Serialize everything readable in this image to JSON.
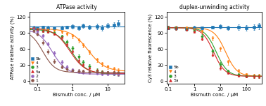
{
  "chart_data": [
    {
      "type": "scatter",
      "title": "ATPase activity",
      "xlabel": "Bismuth conc. / μM",
      "ylabel": "ATPase relative activity (%)",
      "log": "x",
      "xlim": [
        0.06,
        30
      ],
      "xticks": [
        0.1,
        1,
        10
      ],
      "ylim": [
        -5,
        130
      ],
      "yticks": [
        0,
        30,
        60,
        90,
        120
      ],
      "legend": "lower left",
      "series": [
        {
          "name": "5b",
          "marker": "square",
          "x": [
            0.08,
            0.1,
            0.15,
            0.2,
            0.3,
            0.5,
            0.7,
            1.0,
            1.5,
            2.0,
            3.0,
            5.0,
            7.0,
            10.0,
            15.0,
            20.0
          ],
          "values": [
            100,
            99,
            101,
            100,
            99,
            100,
            101,
            102,
            100,
            103,
            101,
            102,
            100,
            104,
            105,
            108
          ],
          "errors": [
            3,
            3,
            3,
            3,
            3,
            3,
            3,
            4,
            4,
            4,
            4,
            5,
            5,
            5,
            5,
            6
          ],
          "fit": {
            "level": 101.5625
          }
        },
        {
          "name": "4",
          "marker": "triangle_down",
          "x": [
            0.08,
            0.1,
            0.15,
            0.2,
            0.3,
            0.5,
            0.7,
            1.0,
            1.5,
            2.0,
            3.0,
            5.0,
            7.0,
            10.0,
            15.0,
            20.0
          ],
          "values": [
            98,
            97,
            96,
            96,
            94,
            92,
            88,
            84,
            76,
            67,
            54,
            40,
            32,
            26,
            22,
            20
          ],
          "errors": [
            3,
            3,
            3,
            3,
            3,
            3,
            3,
            4,
            4,
            4,
            4,
            4,
            4,
            4,
            4,
            4
          ],
          "fit": {
            "ic50": 2.8,
            "hill": 1.8,
            "top": 98,
            "bottom": 18
          }
        },
        {
          "name": "3",
          "marker": "circle",
          "x": [
            0.08,
            0.1,
            0.15,
            0.2,
            0.3,
            0.5,
            0.7,
            1.0,
            1.5,
            2.0,
            3.0,
            5.0,
            7.0,
            10.0,
            15.0,
            20.0
          ],
          "values": [
            97,
            96,
            95,
            93,
            90,
            84,
            74,
            62,
            46,
            36,
            28,
            20,
            17,
            15,
            14,
            13
          ],
          "errors": [
            3,
            3,
            3,
            3,
            3,
            3,
            3,
            4,
            4,
            4,
            4,
            4,
            3,
            3,
            3,
            3
          ],
          "fit": {
            "ic50": 0.95,
            "hill": 2.0,
            "top": 97,
            "bottom": 13
          }
        },
        {
          "name": "5a",
          "marker": "triangle_up",
          "x": [
            0.08,
            0.1,
            0.15,
            0.2,
            0.3,
            0.5,
            0.7,
            1.0,
            1.5,
            2.0,
            3.0,
            5.0,
            7.0,
            10.0,
            15.0,
            20.0
          ],
          "values": [
            99,
            97,
            95,
            93,
            89,
            82,
            70,
            56,
            40,
            32,
            25,
            20,
            17,
            15,
            15,
            14
          ],
          "errors": [
            3,
            3,
            3,
            3,
            3,
            3,
            4,
            4,
            4,
            4,
            4,
            3,
            3,
            3,
            3,
            3
          ],
          "fit": {
            "ic50": 0.85,
            "hill": 2.0,
            "top": 99,
            "bottom": 14
          }
        },
        {
          "name": "2",
          "marker": "circle",
          "x": [
            0.08,
            0.1,
            0.15,
            0.2,
            0.3,
            0.5,
            0.7,
            1.0,
            1.5,
            2.0,
            3.0,
            5.0,
            7.0,
            10.0,
            15.0,
            20.0
          ],
          "values": [
            97,
            93,
            85,
            70,
            52,
            35,
            26,
            21,
            18,
            17,
            16,
            15,
            14,
            14,
            14,
            13
          ],
          "errors": [
            3,
            3,
            3,
            3,
            4,
            4,
            4,
            3,
            3,
            3,
            3,
            3,
            3,
            3,
            3,
            3
          ],
          "fit": {
            "ic50": 0.27,
            "hill": 2.2,
            "top": 97,
            "bottom": 13
          }
        },
        {
          "name": "1",
          "marker": "circle",
          "x": [
            0.08,
            0.1,
            0.15,
            0.2,
            0.3,
            0.5,
            0.7,
            1.0,
            1.5,
            2.0,
            3.0,
            5.0,
            7.0,
            10.0,
            15.0,
            20.0
          ],
          "values": [
            95,
            88,
            72,
            55,
            37,
            27,
            22,
            20,
            19,
            18,
            17,
            17,
            16,
            16,
            16,
            16
          ],
          "errors": [
            3,
            3,
            4,
            4,
            4,
            3,
            3,
            3,
            3,
            3,
            3,
            3,
            3,
            3,
            3,
            3
          ],
          "fit": {
            "ic50": 0.145,
            "hill": 2.5,
            "top": 95,
            "bottom": 16
          }
        }
      ]
    },
    {
      "type": "scatter",
      "title": "duplex-unwinding activity",
      "xlabel": "Bismuth conc. / μM",
      "ylabel": "Cy3 relative fluorescence (%)",
      "log": "x",
      "xlim": [
        0.09,
        400
      ],
      "xticks": [
        0.1,
        1,
        10,
        100
      ],
      "ylim": [
        -5,
        130
      ],
      "yticks": [
        0,
        30,
        60,
        90,
        120
      ],
      "legend": "lower left",
      "series": [
        {
          "name": "5b",
          "marker": "square",
          "x": [
            0.1,
            0.2,
            0.5,
            1.0,
            2.0,
            5.0,
            10.0,
            20.0,
            50.0,
            100.0,
            200.0,
            300.0
          ],
          "values": [
            100,
            99,
            98,
            100,
            99,
            101,
            102,
            100,
            101,
            100,
            101,
            103
          ],
          "errors": [
            3,
            3,
            3,
            3,
            3,
            3,
            4,
            4,
            5,
            5,
            5,
            6
          ],
          "fit": {
            "level": 100.33333333333333
          }
        },
        {
          "name": "4",
          "marker": "triangle_down",
          "x": [
            0.1,
            0.2,
            0.5,
            1.0,
            2.0,
            5.0,
            10.0,
            20.0,
            50.0,
            100.0,
            200.0,
            300.0
          ],
          "values": [
            100,
            100,
            99,
            97,
            93,
            80,
            60,
            35,
            18,
            12,
            10,
            10
          ],
          "errors": [
            3,
            3,
            3,
            3,
            3,
            4,
            4,
            4,
            4,
            3,
            3,
            3
          ],
          "fit": {
            "ic50": 16.0,
            "hill": 2.0,
            "top": 100,
            "bottom": 9
          }
        },
        {
          "name": "3",
          "marker": "circle",
          "x": [
            0.1,
            0.2,
            0.5,
            1.0,
            2.0,
            5.0,
            10.0,
            20.0,
            50.0,
            100.0,
            200.0,
            300.0
          ],
          "values": [
            100,
            99,
            97,
            94,
            84,
            57,
            32,
            18,
            12,
            10,
            9,
            9
          ],
          "errors": [
            3,
            3,
            3,
            3,
            4,
            4,
            4,
            3,
            3,
            3,
            3,
            3
          ],
          "fit": {
            "ic50": 7.0,
            "hill": 2.0,
            "top": 100,
            "bottom": 9
          }
        },
        {
          "name": "5a",
          "marker": "triangle_up",
          "x": [
            0.1,
            0.2,
            0.5,
            1.0,
            2.0,
            5.0,
            10.0,
            20.0,
            50.0,
            100.0,
            200.0,
            300.0
          ],
          "values": [
            100,
            99,
            97,
            93,
            80,
            50,
            25,
            16,
            11,
            10,
            9,
            9
          ],
          "errors": [
            3,
            3,
            3,
            3,
            4,
            4,
            4,
            3,
            3,
            3,
            3,
            3
          ],
          "fit": {
            "ic50": 5.5,
            "hill": 2.0,
            "top": 100,
            "bottom": 9
          }
        }
      ]
    }
  ]
}
